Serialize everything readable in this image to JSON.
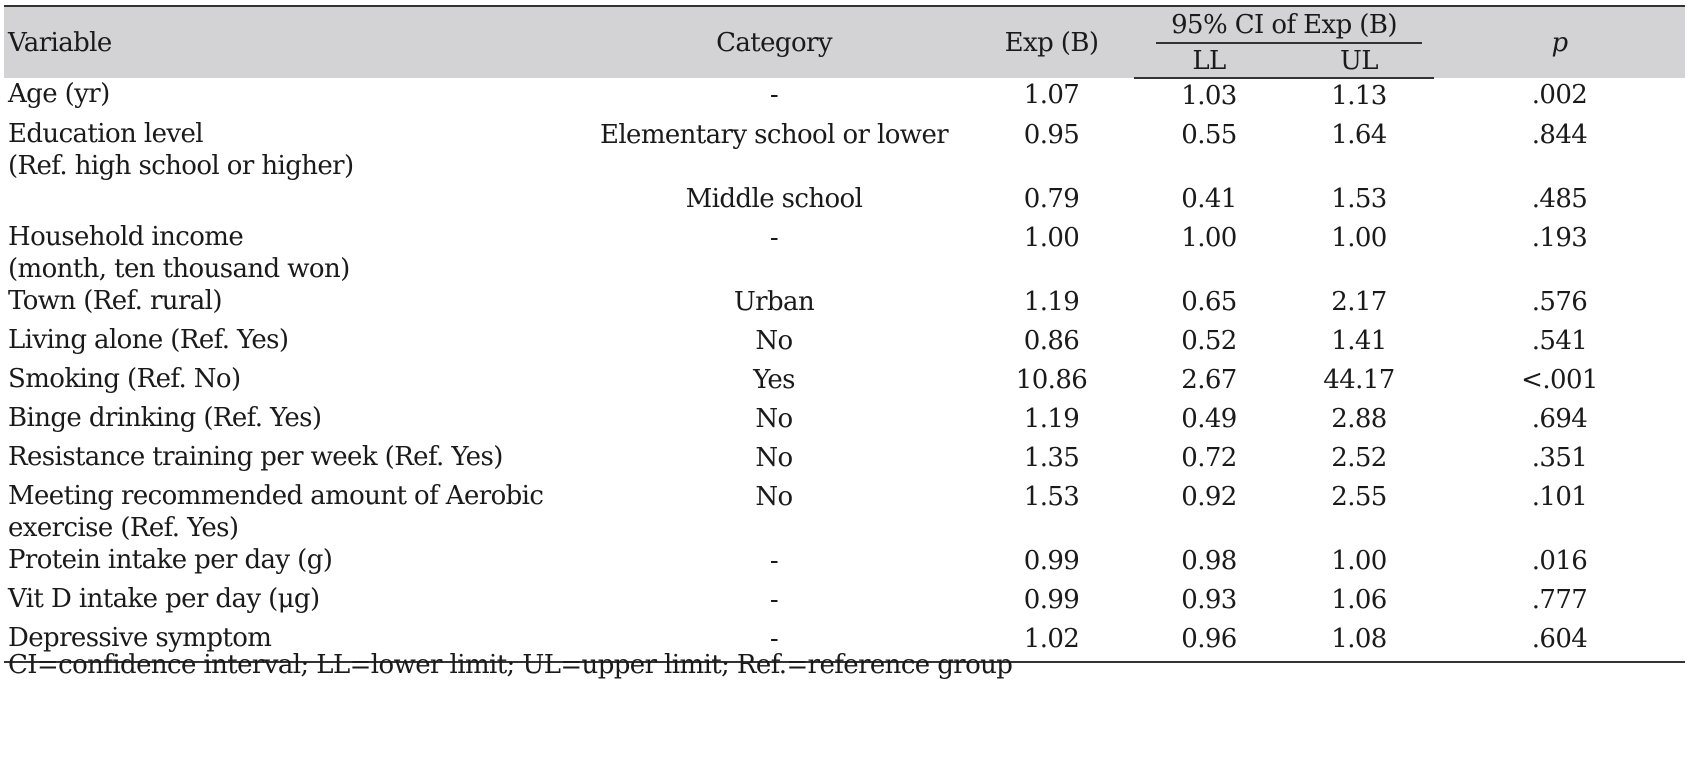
{
  "header": {
    "variable": "Variable",
    "category": "Category",
    "exp_b": "Exp (B)",
    "ci_group": "95% CI of Exp (B)",
    "ll": "LL",
    "ul": "UL",
    "p": "p"
  },
  "rows": [
    {
      "variable": "Age (yr)",
      "category": "-",
      "exp": "1.07",
      "ll": "1.03",
      "ul": "1.13",
      "p": ".002"
    },
    {
      "variable": "Education level",
      "variable2": "(Ref. high school or higher)",
      "category": "Elementary school or lower",
      "exp": "0.95",
      "ll": "0.55",
      "ul": "1.64",
      "p": ".844"
    },
    {
      "variable": "",
      "category": "Middle school",
      "exp": "0.79",
      "ll": "0.41",
      "ul": "1.53",
      "p": ".485"
    },
    {
      "variable": "Household income",
      "variable2": "(month, ten thousand won)",
      "category": "-",
      "exp": "1.00",
      "ll": "1.00",
      "ul": "1.00",
      "p": ".193"
    },
    {
      "variable": "Town (Ref. rural)",
      "category": "Urban",
      "exp": "1.19",
      "ll": "0.65",
      "ul": "2.17",
      "p": ".576"
    },
    {
      "variable": "Living alone (Ref. Yes)",
      "category": "No",
      "exp": "0.86",
      "ll": "0.52",
      "ul": "1.41",
      "p": ".541"
    },
    {
      "variable": "Smoking (Ref. No)",
      "category": "Yes",
      "exp": "10.86",
      "ll": "2.67",
      "ul": "44.17",
      "p": "<.001"
    },
    {
      "variable": "Binge drinking (Ref. Yes)",
      "category": "No",
      "exp": "1.19",
      "ll": "0.49",
      "ul": "2.88",
      "p": ".694"
    },
    {
      "variable": "Resistance training per week (Ref. Yes)",
      "category": "No",
      "exp": "1.35",
      "ll": "0.72",
      "ul": "2.52",
      "p": ".351"
    },
    {
      "variable": "Meeting recommended amount of Aerobic",
      "variable2": "exercise (Ref. Yes)",
      "category": "No",
      "exp": "1.53",
      "ll": "0.92",
      "ul": "2.55",
      "p": ".101"
    },
    {
      "variable": "Protein intake per day (g)",
      "category": "-",
      "exp": "0.99",
      "ll": "0.98",
      "ul": "1.00",
      "p": ".016"
    },
    {
      "variable": "Vit D intake per day (μg)",
      "category": "-",
      "exp": "0.99",
      "ll": "0.93",
      "ul": "1.06",
      "p": ".777"
    },
    {
      "variable": "Depressive symptom",
      "category": "-",
      "exp": "1.02",
      "ll": "0.96",
      "ul": "1.08",
      "p": ".604"
    }
  ],
  "footnote": "CI=confidence interval; LL=lower limit; UL=upper limit; Ref.=reference group"
}
